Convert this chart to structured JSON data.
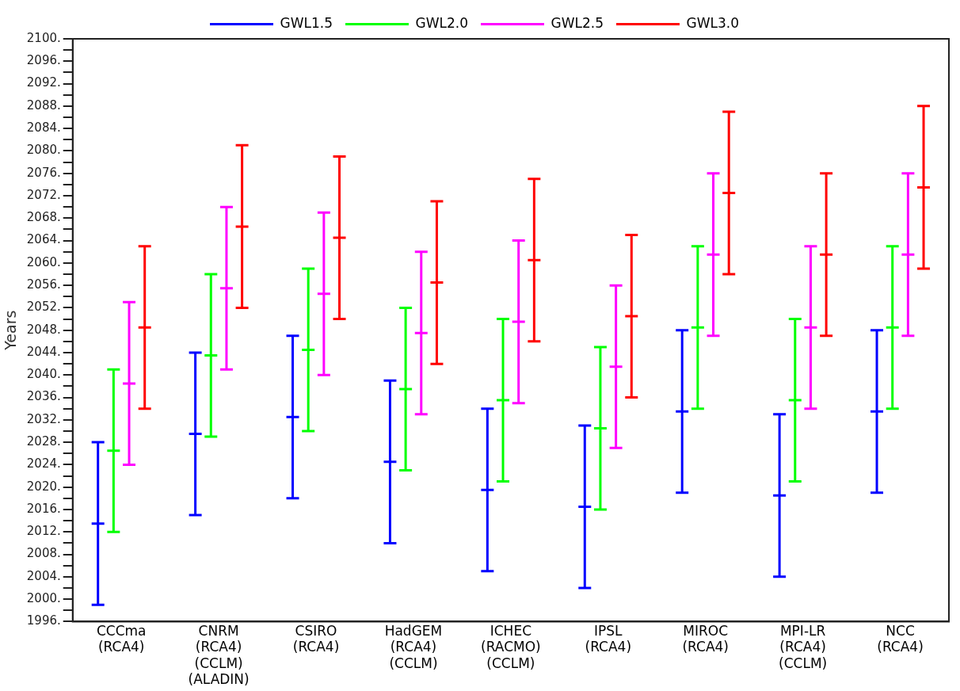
{
  "chart_data": {
    "type": "box",
    "ylabel": "Years",
    "categories": [
      "CCCma\n(RCA4)",
      "CNRM\n(RCA4)\n(CCLM)\n(ALADIN)",
      "CSIRO\n(RCA4)",
      "HadGEM\n(RCA4)\n(CCLM)",
      "ICHEC\n(RACMO)\n(CCLM)",
      "IPSL\n(RCA4)",
      "MIROC\n(RCA4)",
      "MPI-LR\n(RCA4)\n(CCLM)",
      "NCC\n(RCA4)"
    ],
    "series": [
      {
        "name": "GWL1.5",
        "color": "#0000ff",
        "boxes": [
          {
            "low": 1999,
            "q1": 2013.5,
            "median": 2013.5,
            "q3": 2013.5,
            "high": 2028
          },
          {
            "low": 2015,
            "q1": 2029.5,
            "median": 2029.5,
            "q3": 2029.5,
            "high": 2044
          },
          {
            "low": 2018,
            "q1": 2032.5,
            "median": 2032.5,
            "q3": 2032.5,
            "high": 2047
          },
          {
            "low": 2010,
            "q1": 2024.5,
            "median": 2024.5,
            "q3": 2024.5,
            "high": 2039
          },
          {
            "low": 2005,
            "q1": 2019.5,
            "median": 2019.5,
            "q3": 2019.5,
            "high": 2034
          },
          {
            "low": 2002,
            "q1": 2016.5,
            "median": 2016.5,
            "q3": 2016.5,
            "high": 2031
          },
          {
            "low": 2019,
            "q1": 2033.5,
            "median": 2033.5,
            "q3": 2033.5,
            "high": 2048
          },
          {
            "low": 2004,
            "q1": 2018.5,
            "median": 2018.5,
            "q3": 2018.5,
            "high": 2033
          },
          {
            "low": 2019,
            "q1": 2033.5,
            "median": 2033.5,
            "q3": 2033.5,
            "high": 2048
          }
        ]
      },
      {
        "name": "GWL2.0",
        "color": "#00ff00",
        "boxes": [
          {
            "low": 2012,
            "q1": 2026.5,
            "median": 2026.5,
            "q3": 2026.5,
            "high": 2041
          },
          {
            "low": 2029,
            "q1": 2043.5,
            "median": 2043.5,
            "q3": 2043.5,
            "high": 2058
          },
          {
            "low": 2030,
            "q1": 2044.5,
            "median": 2044.5,
            "q3": 2044.5,
            "high": 2059
          },
          {
            "low": 2023,
            "q1": 2037.5,
            "median": 2037.5,
            "q3": 2037.5,
            "high": 2052
          },
          {
            "low": 2021,
            "q1": 2035.5,
            "median": 2035.5,
            "q3": 2035.5,
            "high": 2050
          },
          {
            "low": 2016,
            "q1": 2030.5,
            "median": 2030.5,
            "q3": 2030.5,
            "high": 2045
          },
          {
            "low": 2034,
            "q1": 2048.5,
            "median": 2048.5,
            "q3": 2048.5,
            "high": 2063
          },
          {
            "low": 2021,
            "q1": 2035.5,
            "median": 2035.5,
            "q3": 2035.5,
            "high": 2050
          },
          {
            "low": 2034,
            "q1": 2048.5,
            "median": 2048.5,
            "q3": 2048.5,
            "high": 2063
          }
        ]
      },
      {
        "name": "GWL2.5",
        "color": "#ff00ff",
        "boxes": [
          {
            "low": 2024,
            "q1": 2038.5,
            "median": 2038.5,
            "q3": 2038.5,
            "high": 2053
          },
          {
            "low": 2041,
            "q1": 2055.5,
            "median": 2055.5,
            "q3": 2055.5,
            "high": 2070
          },
          {
            "low": 2040,
            "q1": 2054.5,
            "median": 2054.5,
            "q3": 2054.5,
            "high": 2069
          },
          {
            "low": 2033,
            "q1": 2047.5,
            "median": 2047.5,
            "q3": 2047.5,
            "high": 2062
          },
          {
            "low": 2035,
            "q1": 2049.5,
            "median": 2049.5,
            "q3": 2049.5,
            "high": 2064
          },
          {
            "low": 2027,
            "q1": 2041.5,
            "median": 2041.5,
            "q3": 2041.5,
            "high": 2056
          },
          {
            "low": 2047,
            "q1": 2061.5,
            "median": 2061.5,
            "q3": 2061.5,
            "high": 2076
          },
          {
            "low": 2034,
            "q1": 2048.5,
            "median": 2048.5,
            "q3": 2048.5,
            "high": 2063
          },
          {
            "low": 2047,
            "q1": 2061.5,
            "median": 2061.5,
            "q3": 2061.5,
            "high": 2076
          }
        ]
      },
      {
        "name": "GWL3.0",
        "color": "#ff0000",
        "boxes": [
          {
            "low": 2034,
            "q1": 2048.5,
            "median": 2048.5,
            "q3": 2048.5,
            "high": 2063
          },
          {
            "low": 2052,
            "q1": 2066.5,
            "median": 2066.5,
            "q3": 2066.5,
            "high": 2081
          },
          {
            "low": 2050,
            "q1": 2064.5,
            "median": 2064.5,
            "q3": 2064.5,
            "high": 2079
          },
          {
            "low": 2042,
            "q1": 2056.5,
            "median": 2056.5,
            "q3": 2056.5,
            "high": 2071
          },
          {
            "low": 2046,
            "q1": 2060.5,
            "median": 2060.5,
            "q3": 2060.5,
            "high": 2075
          },
          {
            "low": 2036,
            "q1": 2050.5,
            "median": 2050.5,
            "q3": 2050.5,
            "high": 2065
          },
          {
            "low": 2058,
            "q1": 2072.5,
            "median": 2072.5,
            "q3": 2072.5,
            "high": 2087
          },
          {
            "low": 2047,
            "q1": 2061.5,
            "median": 2061.5,
            "q3": 2061.5,
            "high": 2076
          },
          {
            "low": 2059,
            "q1": 2073.5,
            "median": 2073.5,
            "q3": 2073.5,
            "high": 2088
          }
        ]
      }
    ],
    "ylim": [
      1996,
      2100
    ],
    "yticks": [
      {
        "value": 1996,
        "label": "1996."
      },
      {
        "value": 1998,
        "label": null
      },
      {
        "value": 2000,
        "label": "2000."
      },
      {
        "value": 2002,
        "label": null
      },
      {
        "value": 2004,
        "label": "2004."
      },
      {
        "value": 2006,
        "label": null
      },
      {
        "value": 2008,
        "label": "2008."
      },
      {
        "value": 2010,
        "label": null
      },
      {
        "value": 2012,
        "label": "2012."
      },
      {
        "value": 2014,
        "label": null
      },
      {
        "value": 2016,
        "label": "2016."
      },
      {
        "value": 2018,
        "label": null
      },
      {
        "value": 2020,
        "label": "2020."
      },
      {
        "value": 2022,
        "label": null
      },
      {
        "value": 2024,
        "label": "2024."
      },
      {
        "value": 2026,
        "label": null
      },
      {
        "value": 2028,
        "label": "2028."
      },
      {
        "value": 2030,
        "label": null
      },
      {
        "value": 2032,
        "label": "2032."
      },
      {
        "value": 2034,
        "label": null
      },
      {
        "value": 2036,
        "label": "2036."
      },
      {
        "value": 2038,
        "label": null
      },
      {
        "value": 2040,
        "label": "2040."
      },
      {
        "value": 2042,
        "label": null
      },
      {
        "value": 2044,
        "label": "2044."
      },
      {
        "value": 2046,
        "label": null
      },
      {
        "value": 2048,
        "label": "2048."
      },
      {
        "value": 2050,
        "label": null
      },
      {
        "value": 2052,
        "label": "2052."
      },
      {
        "value": 2054,
        "label": null
      },
      {
        "value": 2056,
        "label": "2056."
      },
      {
        "value": 2058,
        "label": null
      },
      {
        "value": 2060,
        "label": "2060."
      },
      {
        "value": 2062,
        "label": null
      },
      {
        "value": 2064,
        "label": "2064."
      },
      {
        "value": 2066,
        "label": null
      },
      {
        "value": 2068,
        "label": "2068."
      },
      {
        "value": 2070,
        "label": null
      },
      {
        "value": 2072,
        "label": "2072."
      },
      {
        "value": 2074,
        "label": null
      },
      {
        "value": 2076,
        "label": "2076."
      },
      {
        "value": 2078,
        "label": null
      },
      {
        "value": 2080,
        "label": "2080."
      },
      {
        "value": 2082,
        "label": null
      },
      {
        "value": 2084,
        "label": "2084."
      },
      {
        "value": 2086,
        "label": null
      },
      {
        "value": 2088,
        "label": "2088."
      },
      {
        "value": 2090,
        "label": null
      },
      {
        "value": 2092,
        "label": "2092."
      },
      {
        "value": 2094,
        "label": null
      },
      {
        "value": 2096,
        "label": "2096."
      },
      {
        "value": 2098,
        "label": null
      },
      {
        "value": 2100,
        "label": "2100."
      }
    ],
    "grid": false,
    "legend": "top"
  }
}
